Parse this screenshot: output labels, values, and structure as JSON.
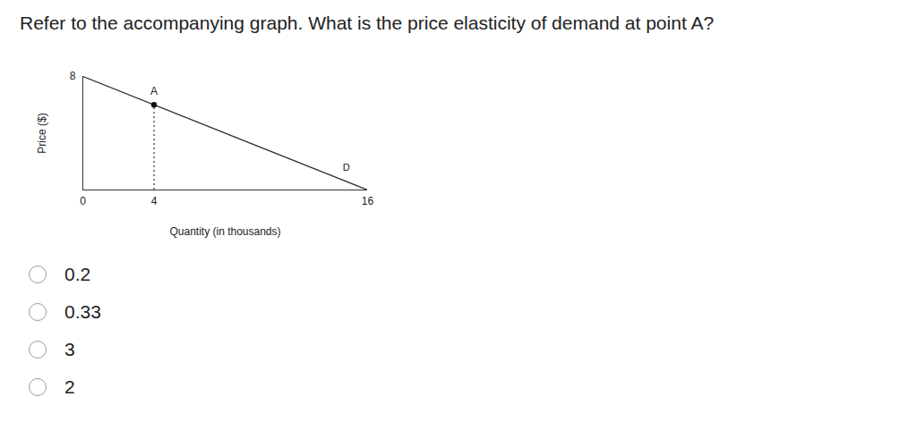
{
  "question": "Refer to the accompanying graph. What is the price elasticity of demand at point A?",
  "chart_data": {
    "type": "line",
    "x_label": "Quantity (in thousands)",
    "y_label": "Price ($)",
    "x": [
      0,
      16
    ],
    "series": [
      {
        "values": [
          8,
          0
        ],
        "color": "#333333"
      }
    ],
    "xlim": [
      0,
      16
    ],
    "xticks": [
      0,
      4,
      16
    ],
    "ylim": [
      0,
      8
    ],
    "yticks": [
      8
    ],
    "grid": false,
    "annotations": [
      {
        "text": "A",
        "x": 4,
        "y": 6,
        "marker": "dot",
        "line_style": "dotted"
      },
      {
        "text": "D",
        "x": 14.8,
        "y": 1.6
      }
    ]
  },
  "options": [
    "0.2",
    "0.33",
    "3",
    "2"
  ]
}
